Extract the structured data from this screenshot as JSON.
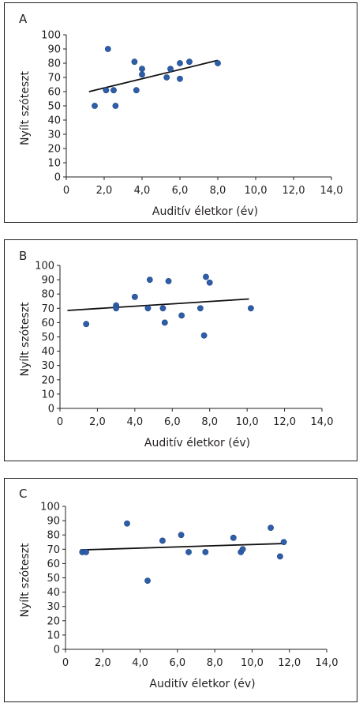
{
  "chart_data": [
    {
      "type": "scatter",
      "panel_label": "A",
      "xlabel": "Auditív életkor (év)",
      "ylabel": "Nyílt szóteszt",
      "xlim": [
        0,
        14
      ],
      "ylim": [
        0,
        100
      ],
      "x_ticks": [
        "0",
        "2,0",
        "4,0",
        "6,0",
        "8,0",
        "10,0",
        "12,0",
        "14,0"
      ],
      "y_ticks": [
        "0",
        "10",
        "20",
        "30",
        "40",
        "50",
        "60",
        "70",
        "80",
        "90",
        "100"
      ],
      "points": [
        [
          1.5,
          50
        ],
        [
          2.1,
          61
        ],
        [
          2.2,
          90
        ],
        [
          2.5,
          61
        ],
        [
          2.6,
          50
        ],
        [
          3.6,
          81
        ],
        [
          3.7,
          61
        ],
        [
          4.0,
          76
        ],
        [
          4.0,
          72
        ],
        [
          5.3,
          70
        ],
        [
          5.5,
          76
        ],
        [
          6.0,
          80
        ],
        [
          6.0,
          69
        ],
        [
          6.5,
          81
        ],
        [
          8.0,
          80
        ]
      ],
      "trendline": [
        [
          1.2,
          60
        ],
        [
          8.0,
          82
        ]
      ],
      "point_color": "#2e5ea8",
      "line_color": "#111111"
    },
    {
      "type": "scatter",
      "panel_label": "B",
      "xlabel": "Auditív életkor (év)",
      "ylabel": "Nyílt szóteszt",
      "xlim": [
        0,
        14
      ],
      "ylim": [
        0,
        100
      ],
      "x_ticks": [
        "0",
        "2,0",
        "4,0",
        "6,0",
        "8,0",
        "10,0",
        "12,0",
        "14,0"
      ],
      "y_ticks": [
        "0",
        "10",
        "20",
        "30",
        "40",
        "50",
        "60",
        "70",
        "80",
        "90",
        "100"
      ],
      "points": [
        [
          1.4,
          59
        ],
        [
          3.0,
          72
        ],
        [
          3.0,
          70
        ],
        [
          4.0,
          78
        ],
        [
          4.7,
          70
        ],
        [
          4.8,
          90
        ],
        [
          5.5,
          70
        ],
        [
          5.6,
          60
        ],
        [
          5.8,
          89
        ],
        [
          6.5,
          65
        ],
        [
          7.5,
          70
        ],
        [
          7.7,
          51
        ],
        [
          7.8,
          92
        ],
        [
          8.0,
          88
        ],
        [
          10.2,
          70
        ]
      ],
      "trendline": [
        [
          0.4,
          68.5
        ],
        [
          10.1,
          76.5
        ]
      ],
      "point_color": "#2e5ea8",
      "line_color": "#111111"
    },
    {
      "type": "scatter",
      "panel_label": "C",
      "xlabel": "Auditív életkor (év)",
      "ylabel": "Nyílt szóteszt",
      "xlim": [
        0,
        14
      ],
      "ylim": [
        0,
        100
      ],
      "x_ticks": [
        "0",
        "2,0",
        "4,0",
        "6,0",
        "8,0",
        "10,0",
        "12,0",
        "14,0"
      ],
      "y_ticks": [
        "0",
        "10",
        "20",
        "30",
        "40",
        "50",
        "60",
        "70",
        "80",
        "90",
        "100"
      ],
      "points": [
        [
          0.9,
          68
        ],
        [
          1.1,
          68
        ],
        [
          3.3,
          88
        ],
        [
          4.4,
          48
        ],
        [
          5.2,
          76
        ],
        [
          6.2,
          80
        ],
        [
          6.6,
          68
        ],
        [
          7.5,
          68
        ],
        [
          9.0,
          78
        ],
        [
          9.4,
          68
        ],
        [
          9.5,
          70
        ],
        [
          11.0,
          85
        ],
        [
          11.5,
          65
        ],
        [
          11.7,
          75
        ]
      ],
      "trendline": [
        [
          0.8,
          69.5
        ],
        [
          11.7,
          74
        ]
      ],
      "point_color": "#2e5ea8",
      "line_color": "#111111"
    }
  ]
}
